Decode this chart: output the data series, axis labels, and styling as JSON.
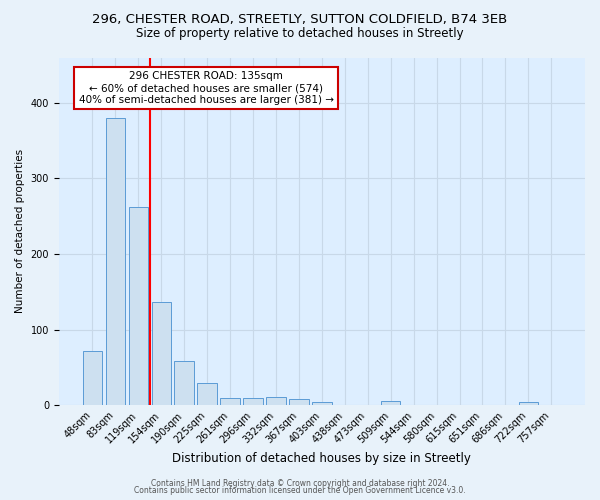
{
  "title1": "296, CHESTER ROAD, STREETLY, SUTTON COLDFIELD, B74 3EB",
  "title2": "Size of property relative to detached houses in Streetly",
  "xlabel": "Distribution of detached houses by size in Streetly",
  "ylabel": "Number of detached properties",
  "categories": [
    "48sqm",
    "83sqm",
    "119sqm",
    "154sqm",
    "190sqm",
    "225sqm",
    "261sqm",
    "296sqm",
    "332sqm",
    "367sqm",
    "403sqm",
    "438sqm",
    "473sqm",
    "509sqm",
    "544sqm",
    "580sqm",
    "615sqm",
    "651sqm",
    "686sqm",
    "722sqm",
    "757sqm"
  ],
  "values": [
    72,
    380,
    262,
    136,
    59,
    30,
    10,
    10,
    11,
    8,
    4,
    0,
    0,
    5,
    0,
    0,
    0,
    0,
    0,
    4,
    0
  ],
  "bar_color": "#cde0f0",
  "bar_edge_color": "#5b9bd5",
  "background_color": "#ddeeff",
  "grid_color": "#c8d8e8",
  "fig_background": "#e8f2fa",
  "red_line_x": 2.5,
  "annotation_text": "296 CHESTER ROAD: 135sqm\n← 60% of detached houses are smaller (574)\n40% of semi-detached houses are larger (381) →",
  "annotation_box_color": "#ffffff",
  "annotation_box_edge": "#cc0000",
  "footnote1": "Contains HM Land Registry data © Crown copyright and database right 2024.",
  "footnote2": "Contains public sector information licensed under the Open Government Licence v3.0.",
  "ylim": [
    0,
    460
  ],
  "title1_fontsize": 9.5,
  "title2_fontsize": 8.5,
  "xlabel_fontsize": 8.5,
  "ylabel_fontsize": 7.5,
  "tick_fontsize": 7,
  "annot_fontsize": 7.5,
  "footnote_fontsize": 5.5
}
